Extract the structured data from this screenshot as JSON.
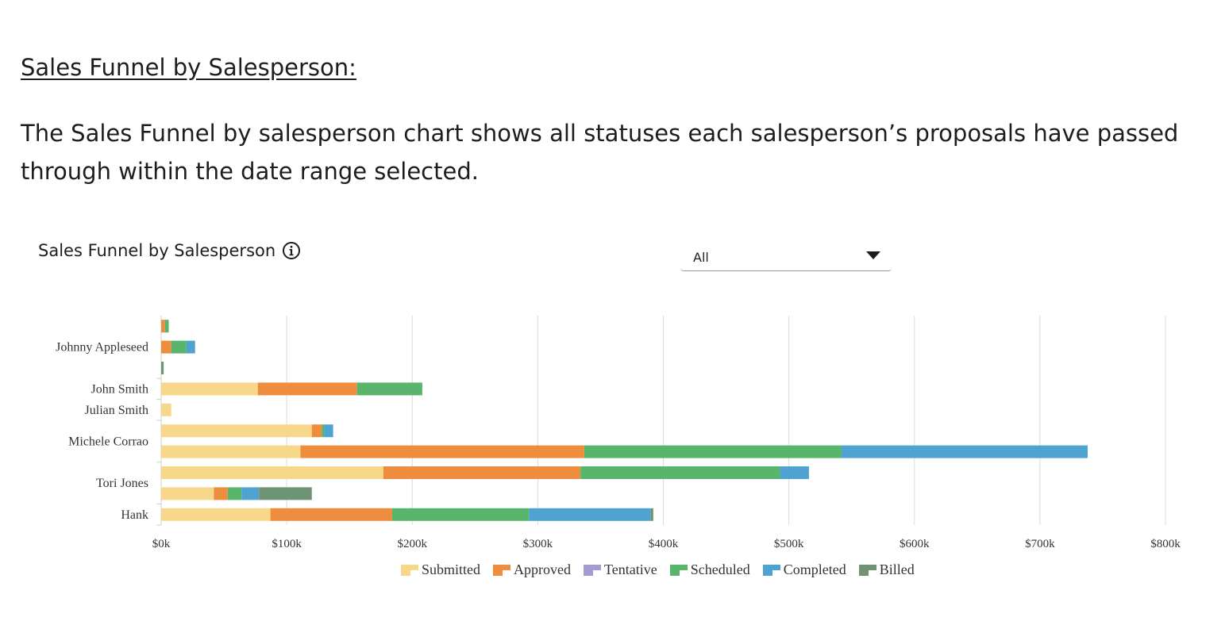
{
  "page": {
    "heading": "Sales Funnel by Salesperson:",
    "intro": "The Sales Funnel by salesperson chart shows all statuses each salesperson’s proposals have passed through within the date range selected."
  },
  "widget": {
    "title": "Sales Funnel by Salesperson",
    "info_icon": "info-circle-icon",
    "filter": {
      "selected": "All",
      "icon": "caret-down-icon"
    }
  },
  "chart_data": {
    "type": "bar",
    "orientation": "horizontal",
    "stacked": true,
    "title": "",
    "xlabel": "",
    "ylabel": "",
    "xlim": [
      0,
      800000
    ],
    "x_ticks": [
      "$0k",
      "$100k",
      "$200k",
      "$300k",
      "$400k",
      "$500k",
      "$600k",
      "$700k",
      "$800k"
    ],
    "grid": "vertical",
    "legend_position": "bottom",
    "statuses": [
      "Submitted",
      "Approved",
      "Tentative",
      "Scheduled",
      "Completed",
      "Billed"
    ],
    "colors": {
      "Submitted": "#f7d88b",
      "Approved": "#ef8d3f",
      "Tentative": "#a49bd0",
      "Scheduled": "#58b56b",
      "Completed": "#4ea3d1",
      "Billed": "#6f9474"
    },
    "salespeople": [
      {
        "name": "Johnny Appleseed",
        "rows": [
          {
            "Submitted": 0,
            "Approved": 3000,
            "Tentative": 0,
            "Scheduled": 3000,
            "Completed": 0,
            "Billed": 0
          },
          {
            "Submitted": 0,
            "Approved": 8000,
            "Tentative": 0,
            "Scheduled": 12000,
            "Completed": 7000,
            "Billed": 0
          },
          {
            "Submitted": 0,
            "Approved": 0,
            "Tentative": 0,
            "Scheduled": 0,
            "Completed": 0,
            "Billed": 2000
          }
        ]
      },
      {
        "name": "John Smith",
        "rows": [
          {
            "Submitted": 77000,
            "Approved": 79000,
            "Tentative": 0,
            "Scheduled": 52000,
            "Completed": 0,
            "Billed": 0
          }
        ]
      },
      {
        "name": "Julian Smith",
        "rows": [
          {
            "Submitted": 8000,
            "Approved": 0,
            "Tentative": 0,
            "Scheduled": 0,
            "Completed": 0,
            "Billed": 0
          }
        ]
      },
      {
        "name": "Michele Corrao",
        "rows": [
          {
            "Submitted": 120000,
            "Approved": 8000,
            "Tentative": 0,
            "Scheduled": 2000,
            "Completed": 7000,
            "Billed": 0
          },
          {
            "Submitted": 111000,
            "Approved": 226000,
            "Tentative": 0,
            "Scheduled": 205000,
            "Completed": 196000,
            "Billed": 0
          }
        ]
      },
      {
        "name": "Tori Jones",
        "rows": [
          {
            "Submitted": 177000,
            "Approved": 157000,
            "Tentative": 0,
            "Scheduled": 159000,
            "Completed": 23000,
            "Billed": 0
          },
          {
            "Submitted": 42000,
            "Approved": 11000,
            "Tentative": 0,
            "Scheduled": 11000,
            "Completed": 14000,
            "Billed": 42000
          }
        ]
      },
      {
        "name": "Hank",
        "rows": [
          {
            "Submitted": 87000,
            "Approved": 97000,
            "Tentative": 0,
            "Scheduled": 109000,
            "Completed": 97000,
            "Billed": 2000
          }
        ]
      }
    ]
  }
}
